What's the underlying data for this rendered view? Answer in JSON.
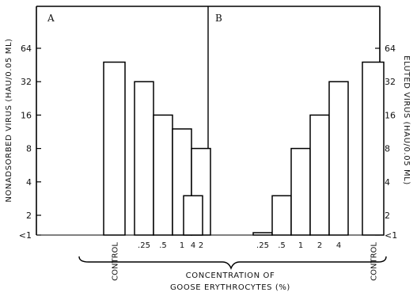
{
  "chart_data": [
    {
      "panel": "A",
      "type": "bar",
      "ylabel": "NONADSORBED VIRUS (HAU/0.05 ML)",
      "yticks": [
        "64",
        "32",
        "16",
        "8",
        "4",
        "2",
        "<1"
      ],
      "y_scale": "log2",
      "categories": [
        "CONTROL",
        ".25",
        ".5",
        "1",
        "2",
        "4"
      ],
      "values": [
        48,
        32,
        16,
        12,
        8,
        3
      ],
      "control_fill": "dotted"
    },
    {
      "panel": "B",
      "type": "bar",
      "ylabel": "ELUTED VIRUS (HAU/0.05 ML)",
      "yticks": [
        "64",
        "32",
        "16",
        "8",
        "4",
        "2",
        "<1"
      ],
      "y_scale": "log2",
      "categories": [
        ".25",
        ".5",
        "1",
        "2",
        "4",
        "CONTROL"
      ],
      "values": [
        1,
        3,
        8,
        16,
        32,
        48
      ],
      "control_fill": "hatched"
    }
  ],
  "xlabel_line1": "CONCENTRATION OF",
  "xlabel_line2": "GOOSE ERYTHROCYTES (%)"
}
